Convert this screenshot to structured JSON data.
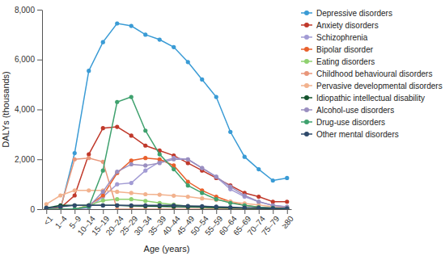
{
  "chart_data": {
    "type": "line",
    "x_label": "Age (years)",
    "y_label": "DALYs (thousands)",
    "categories": [
      "<1",
      "1–4",
      "5–9",
      "10–14",
      "15–19",
      "20–24",
      "25–29",
      "30–34",
      "35–39",
      "40–44",
      "45–49",
      "50–54",
      "55–59",
      "60–64",
      "65–69",
      "70–74",
      "75–79",
      "≥80"
    ],
    "ylim": [
      0,
      8000
    ],
    "yticks": [
      0,
      {
        "value": 2000,
        "label": "2,000"
      },
      {
        "value": 4000,
        "label": "4,000"
      },
      {
        "value": 6000,
        "label": "6,000"
      },
      {
        "value": 8000,
        "label": "8,000"
      }
    ],
    "grid": false,
    "legend": "right",
    "marker": "circle",
    "series": [
      {
        "name": "Depressive disorders",
        "color": "#3a9bd5",
        "values": [
          0,
          0,
          2250,
          5550,
          6700,
          7450,
          7350,
          7000,
          6800,
          6500,
          5900,
          5200,
          4500,
          3100,
          2100,
          1600,
          1150,
          1250
        ]
      },
      {
        "name": "Anxiety disorders",
        "color": "#c0392b",
        "values": [
          0,
          50,
          550,
          2200,
          3250,
          3300,
          2950,
          2550,
          2350,
          2150,
          1850,
          1550,
          1250,
          950,
          650,
          500,
          300,
          300
        ]
      },
      {
        "name": "Schizophrenia",
        "color": "#a29bd4",
        "values": [
          0,
          0,
          0,
          50,
          500,
          1000,
          1050,
          1550,
          1900,
          2050,
          2000,
          1650,
          1300,
          800,
          500,
          300,
          150,
          100
        ]
      },
      {
        "name": "Bipolar disorder",
        "color": "#e8602c",
        "values": [
          0,
          0,
          0,
          150,
          550,
          1450,
          1950,
          2050,
          2000,
          1750,
          1100,
          750,
          500,
          300,
          150,
          80,
          40,
          20
        ]
      },
      {
        "name": "Eating disorders",
        "color": "#8fd16f",
        "values": [
          0,
          0,
          0,
          150,
          350,
          400,
          400,
          330,
          250,
          180,
          120,
          80,
          60,
          40,
          30,
          20,
          10,
          10
        ]
      },
      {
        "name": "Childhood behavioural disorders",
        "color": "#e8967a",
        "values": [
          0,
          50,
          2000,
          2050,
          1900,
          0,
          0,
          0,
          0,
          0,
          0,
          0,
          0,
          0,
          0,
          0,
          0,
          0
        ]
      },
      {
        "name": "Pervasive developmental disorders",
        "color": "#f2b28e",
        "values": [
          200,
          550,
          750,
          750,
          750,
          700,
          650,
          600,
          580,
          540,
          500,
          430,
          370,
          300,
          230,
          170,
          100,
          80
        ]
      },
      {
        "name": "Idiopathic intellectual disability",
        "color": "#14532d",
        "values": [
          50,
          150,
          150,
          150,
          150,
          150,
          130,
          120,
          110,
          100,
          90,
          80,
          60,
          50,
          40,
          30,
          20,
          10
        ]
      },
      {
        "name": "Alcohol-use disorders",
        "color": "#9a8fc0",
        "values": [
          0,
          0,
          0,
          100,
          700,
          1500,
          1800,
          1750,
          1850,
          2000,
          2000,
          1650,
          1300,
          900,
          550,
          300,
          150,
          80
        ]
      },
      {
        "name": "Drug-use disorders",
        "color": "#3fa16e",
        "values": [
          0,
          0,
          0,
          100,
          1550,
          4300,
          4500,
          3150,
          2200,
          1600,
          950,
          650,
          400,
          250,
          150,
          80,
          50,
          30
        ]
      },
      {
        "name": "Other mental disorders",
        "color": "#2f4a6b",
        "values": [
          50,
          100,
          150,
          150,
          150,
          150,
          150,
          150,
          150,
          150,
          130,
          120,
          100,
          80,
          60,
          50,
          40,
          30
        ]
      }
    ]
  }
}
